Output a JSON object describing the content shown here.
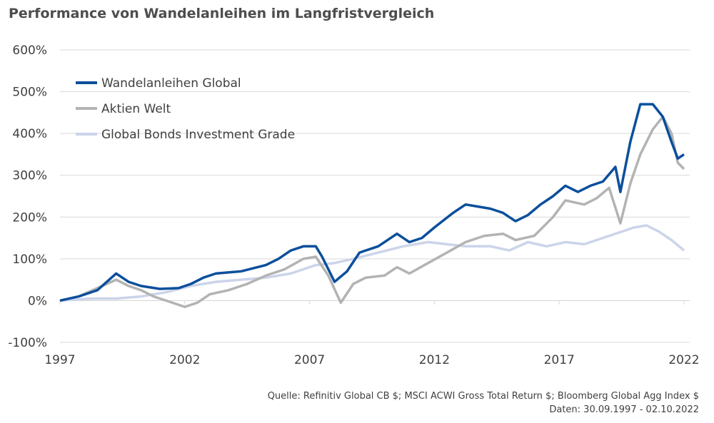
{
  "title": "Performance von Wandelanleihen im Langfristvergleich",
  "source_line1": "Quelle: Refinitiv Global CB $; MSCI ACWI Gross Total Return $; Bloomberg Global Agg Index $",
  "source_line2": "Daten: 30.09.1997 - 02.10.2022",
  "chart_data": {
    "type": "line",
    "title": "Performance von Wandelanleihen im Langfristvergleich",
    "xlabel": "",
    "ylabel": "",
    "xlim": [
      1997.75,
      2022.75
    ],
    "ylim": [
      -100,
      600
    ],
    "x_ticks": [
      "1997",
      "2002",
      "2007",
      "2012",
      "2017",
      "2022"
    ],
    "y_ticks": [
      "600%",
      "500%",
      "400%",
      "300%",
      "200%",
      "100%",
      "0%",
      "-100%"
    ],
    "grid": "horizontal",
    "legend_position": "top-left",
    "series": [
      {
        "name": "Wandelanleihen Global",
        "color": "#0a4f9c",
        "points": [
          [
            1997.75,
            0
          ],
          [
            1998.5,
            10
          ],
          [
            1999.25,
            25
          ],
          [
            2000.0,
            65
          ],
          [
            2000.5,
            45
          ],
          [
            2001.0,
            35
          ],
          [
            2001.75,
            28
          ],
          [
            2002.5,
            30
          ],
          [
            2003.0,
            40
          ],
          [
            2003.5,
            55
          ],
          [
            2004.0,
            65
          ],
          [
            2005.0,
            70
          ],
          [
            2006.0,
            85
          ],
          [
            2006.5,
            100
          ],
          [
            2007.0,
            120
          ],
          [
            2007.5,
            130
          ],
          [
            2008.0,
            130
          ],
          [
            2008.25,
            105
          ],
          [
            2008.75,
            45
          ],
          [
            2009.25,
            70
          ],
          [
            2009.75,
            115
          ],
          [
            2010.5,
            130
          ],
          [
            2011.25,
            160
          ],
          [
            2011.75,
            140
          ],
          [
            2012.25,
            150
          ],
          [
            2012.75,
            175
          ],
          [
            2013.5,
            210
          ],
          [
            2014.0,
            230
          ],
          [
            2014.5,
            225
          ],
          [
            2015.0,
            220
          ],
          [
            2015.5,
            210
          ],
          [
            2016.0,
            190
          ],
          [
            2016.5,
            205
          ],
          [
            2017.0,
            230
          ],
          [
            2017.5,
            250
          ],
          [
            2018.0,
            275
          ],
          [
            2018.5,
            260
          ],
          [
            2019.0,
            275
          ],
          [
            2019.5,
            285
          ],
          [
            2020.0,
            320
          ],
          [
            2020.2,
            260
          ],
          [
            2020.6,
            380
          ],
          [
            2021.0,
            470
          ],
          [
            2021.5,
            470
          ],
          [
            2021.9,
            440
          ],
          [
            2022.25,
            380
          ],
          [
            2022.5,
            340
          ],
          [
            2022.75,
            350
          ]
        ]
      },
      {
        "name": "Aktien Welt",
        "color": "#b3b3b3",
        "points": [
          [
            1997.75,
            0
          ],
          [
            1998.5,
            10
          ],
          [
            1999.25,
            30
          ],
          [
            2000.0,
            50
          ],
          [
            2000.5,
            35
          ],
          [
            2001.0,
            25
          ],
          [
            2001.5,
            10
          ],
          [
            2002.0,
            0
          ],
          [
            2002.75,
            -15
          ],
          [
            2003.25,
            -5
          ],
          [
            2003.75,
            15
          ],
          [
            2004.5,
            25
          ],
          [
            2005.25,
            40
          ],
          [
            2006.0,
            60
          ],
          [
            2006.75,
            75
          ],
          [
            2007.5,
            100
          ],
          [
            2008.0,
            105
          ],
          [
            2008.5,
            60
          ],
          [
            2009.0,
            -5
          ],
          [
            2009.5,
            40
          ],
          [
            2010.0,
            55
          ],
          [
            2010.75,
            60
          ],
          [
            2011.25,
            80
          ],
          [
            2011.75,
            65
          ],
          [
            2012.5,
            90
          ],
          [
            2013.25,
            115
          ],
          [
            2014.0,
            140
          ],
          [
            2014.75,
            155
          ],
          [
            2015.5,
            160
          ],
          [
            2016.0,
            145
          ],
          [
            2016.75,
            155
          ],
          [
            2017.5,
            200
          ],
          [
            2018.0,
            240
          ],
          [
            2018.75,
            230
          ],
          [
            2019.25,
            245
          ],
          [
            2019.75,
            270
          ],
          [
            2020.2,
            185
          ],
          [
            2020.6,
            280
          ],
          [
            2021.0,
            350
          ],
          [
            2021.5,
            410
          ],
          [
            2021.9,
            440
          ],
          [
            2022.25,
            400
          ],
          [
            2022.5,
            330
          ],
          [
            2022.75,
            315
          ]
        ]
      },
      {
        "name": "Global Bonds Investment Grade",
        "color": "#ccd4ea",
        "points": [
          [
            1997.75,
            0
          ],
          [
            1999.0,
            5
          ],
          [
            2000.0,
            5
          ],
          [
            2001.0,
            10
          ],
          [
            2002.0,
            20
          ],
          [
            2003.0,
            35
          ],
          [
            2004.0,
            45
          ],
          [
            2005.0,
            50
          ],
          [
            2006.0,
            55
          ],
          [
            2007.0,
            65
          ],
          [
            2008.0,
            85
          ],
          [
            2008.75,
            90
          ],
          [
            2009.5,
            100
          ],
          [
            2010.5,
            115
          ],
          [
            2011.5,
            130
          ],
          [
            2012.5,
            140
          ],
          [
            2013.25,
            135
          ],
          [
            2014.0,
            130
          ],
          [
            2015.0,
            130
          ],
          [
            2015.75,
            120
          ],
          [
            2016.5,
            140
          ],
          [
            2017.25,
            130
          ],
          [
            2018.0,
            140
          ],
          [
            2018.75,
            135
          ],
          [
            2019.5,
            150
          ],
          [
            2020.25,
            165
          ],
          [
            2020.75,
            175
          ],
          [
            2021.25,
            180
          ],
          [
            2021.75,
            165
          ],
          [
            2022.25,
            145
          ],
          [
            2022.75,
            120
          ]
        ]
      }
    ]
  }
}
